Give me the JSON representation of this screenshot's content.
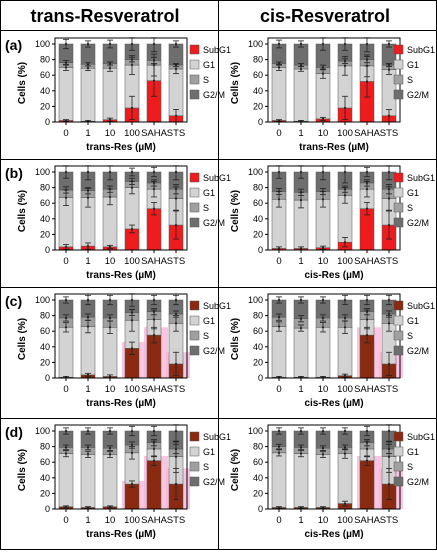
{
  "headers": {
    "left": "trans-Resveratrol",
    "right": "cis-Resveratrol"
  },
  "rows": [
    {
      "label": "(a)",
      "xlabel_left": "trans-Res (µM)",
      "xlabel_right": "trans-Res (µM)"
    },
    {
      "label": "(b)",
      "xlabel_left": "trans-Res (µM)",
      "xlabel_right": "cis-Res (µM)"
    },
    {
      "label": "(c)",
      "xlabel_left": "trans-Res (µM)",
      "xlabel_right": "cis-Res (µM)"
    },
    {
      "label": "(d)",
      "xlabel_left": "trans-Res (µM)",
      "xlabel_right": "cis-Res (µM)"
    }
  ],
  "colors": {
    "SubG1": "#ee1c1c",
    "SubG1_dark": "#8a2a10",
    "G1": "#d3d3d3",
    "S": "#a0a0a0",
    "G2M": "#6e6e6e",
    "pink_bg": "#f7b6d8",
    "border": "#000000"
  },
  "chart_data": [
    {
      "panel": "a-trans",
      "type": "bar",
      "stacked": true,
      "categories": [
        "0",
        "1",
        "10",
        "100",
        "SAHA",
        "STS"
      ],
      "ylabel": "Cells (%)",
      "xlabel": "trans-Res (µM)",
      "ylim": [
        0,
        100
      ],
      "yticks": [
        0,
        20,
        40,
        60,
        80,
        100
      ],
      "legend": [
        "SubG1",
        "G1",
        "S",
        "G2/M"
      ],
      "series": [
        {
          "name": "SubG1",
          "values": [
            2,
            1,
            3,
            18,
            53,
            8
          ]
        },
        {
          "name": "G1",
          "values": [
            68,
            68,
            66,
            55,
            20,
            60
          ]
        },
        {
          "name": "S",
          "values": [
            6,
            5,
            6,
            7,
            6,
            5
          ]
        },
        {
          "name": "G2/M",
          "values": [
            24,
            26,
            25,
            20,
            21,
            27
          ]
        }
      ],
      "errors": {
        "SubG1": [
          1,
          1,
          2,
          15,
          20,
          8
        ],
        "G1": [
          4,
          3,
          4,
          12,
          14,
          6
        ],
        "S": [
          3,
          2,
          2,
          3,
          4,
          2
        ],
        "G2/M": [
          6,
          4,
          5,
          8,
          10,
          4
        ]
      }
    },
    {
      "panel": "a-cis",
      "type": "bar",
      "stacked": true,
      "categories": [
        "0",
        "1",
        "10",
        "100",
        "SAHA",
        "STS"
      ],
      "ylabel": "Cells (%)",
      "xlabel": "trans-Res (µM)",
      "ylim": [
        0,
        100
      ],
      "yticks": [
        0,
        20,
        40,
        60,
        80,
        100
      ],
      "legend": [
        "SubG1",
        "G1",
        "S",
        "G2/M"
      ],
      "series": [
        {
          "name": "SubG1",
          "values": [
            2,
            1,
            4,
            18,
            52,
            8
          ]
        },
        {
          "name": "G1",
          "values": [
            68,
            67,
            58,
            54,
            20,
            59
          ]
        },
        {
          "name": "S",
          "values": [
            5,
            5,
            8,
            6,
            8,
            6
          ]
        },
        {
          "name": "G2/M",
          "values": [
            25,
            27,
            30,
            22,
            20,
            27
          ]
        }
      ],
      "errors": {
        "SubG1": [
          1,
          1,
          2,
          15,
          20,
          8
        ],
        "G1": [
          4,
          3,
          6,
          12,
          14,
          6
        ],
        "S": [
          2,
          2,
          3,
          3,
          4,
          2
        ],
        "G2/M": [
          5,
          4,
          8,
          8,
          10,
          4
        ]
      }
    },
    {
      "panel": "b-trans",
      "type": "bar",
      "stacked": true,
      "categories": [
        "0",
        "1",
        "10",
        "100",
        "SAHA",
        "STS"
      ],
      "ylabel": "Cells (%)",
      "xlabel": "trans-Res (µM)",
      "ylim": [
        0,
        100
      ],
      "yticks": [
        0,
        20,
        40,
        60,
        80,
        100
      ],
      "legend": [
        "SubG1",
        "G1",
        "S",
        "G2/M"
      ],
      "series": [
        {
          "name": "SubG1",
          "values": [
            4,
            5,
            4,
            27,
            53,
            32
          ]
        },
        {
          "name": "G1",
          "values": [
            63,
            62,
            64,
            53,
            25,
            34
          ]
        },
        {
          "name": "S",
          "values": [
            10,
            9,
            10,
            8,
            8,
            12
          ]
        },
        {
          "name": "G2/M",
          "values": [
            23,
            24,
            22,
            12,
            14,
            22
          ]
        }
      ],
      "errors": {
        "SubG1": [
          3,
          4,
          2,
          5,
          8,
          18
        ],
        "G1": [
          10,
          12,
          10,
          8,
          10,
          15
        ],
        "S": [
          4,
          4,
          4,
          4,
          4,
          6
        ],
        "G2/M": [
          8,
          10,
          10,
          5,
          6,
          10
        ]
      }
    },
    {
      "panel": "b-cis",
      "type": "bar",
      "stacked": true,
      "categories": [
        "0",
        "1",
        "10",
        "100",
        "SAHA",
        "STS"
      ],
      "ylabel": "Cells (%)",
      "xlabel": "cis-Res (µM)",
      "ylim": [
        0,
        100
      ],
      "yticks": [
        0,
        20,
        40,
        60,
        80,
        100
      ],
      "legend": [
        "SubG1",
        "G1",
        "S",
        "G2/M"
      ],
      "series": [
        {
          "name": "SubG1",
          "values": [
            2,
            2,
            3,
            10,
            53,
            32
          ]
        },
        {
          "name": "G1",
          "values": [
            63,
            62,
            62,
            60,
            25,
            34
          ]
        },
        {
          "name": "S",
          "values": [
            10,
            10,
            10,
            8,
            8,
            12
          ]
        },
        {
          "name": "G2/M",
          "values": [
            25,
            26,
            25,
            22,
            14,
            22
          ]
        }
      ],
      "errors": {
        "SubG1": [
          2,
          2,
          2,
          6,
          8,
          18
        ],
        "G1": [
          10,
          10,
          10,
          10,
          10,
          15
        ],
        "S": [
          4,
          4,
          4,
          4,
          4,
          6
        ],
        "G2/M": [
          8,
          8,
          10,
          14,
          6,
          10
        ]
      }
    },
    {
      "panel": "c-trans",
      "type": "bar",
      "stacked": true,
      "categories": [
        "0",
        "1",
        "10",
        "100",
        "SAHA",
        "STS"
      ],
      "ylabel": "Cells (%)",
      "xlabel": "trans-Res (µM)",
      "ylim": [
        0,
        100
      ],
      "yticks": [
        0,
        20,
        40,
        60,
        80,
        100
      ],
      "legend": [
        "SubG1",
        "G1",
        "S",
        "G2/M"
      ],
      "series": [
        {
          "name": "SubG1",
          "values": [
            1,
            4,
            2,
            38,
            55,
            18
          ]
        },
        {
          "name": "G1",
          "values": [
            64,
            62,
            63,
            36,
            20,
            52
          ]
        },
        {
          "name": "S",
          "values": [
            12,
            12,
            12,
            10,
            10,
            12
          ]
        },
        {
          "name": "G2/M",
          "values": [
            23,
            22,
            23,
            16,
            15,
            18
          ]
        }
      ],
      "errors": {
        "SubG1": [
          1,
          2,
          2,
          8,
          10,
          15
        ],
        "G1": [
          6,
          8,
          8,
          14,
          12,
          10
        ],
        "S": [
          4,
          4,
          4,
          4,
          4,
          4
        ],
        "G2/M": [
          4,
          6,
          6,
          8,
          6,
          6
        ]
      }
    },
    {
      "panel": "c-cis",
      "type": "bar",
      "stacked": true,
      "categories": [
        "0",
        "1",
        "10",
        "100",
        "SAHA",
        "STS"
      ],
      "ylabel": "Cells (%)",
      "xlabel": "cis-Res (µM)",
      "ylim": [
        0,
        100
      ],
      "yticks": [
        0,
        20,
        40,
        60,
        80,
        100
      ],
      "legend": [
        "SubG1",
        "G1",
        "S",
        "G2/M"
      ],
      "series": [
        {
          "name": "SubG1",
          "values": [
            1,
            1,
            1,
            3,
            55,
            18
          ]
        },
        {
          "name": "G1",
          "values": [
            65,
            63,
            64,
            62,
            20,
            52
          ]
        },
        {
          "name": "S",
          "values": [
            12,
            12,
            12,
            12,
            10,
            12
          ]
        },
        {
          "name": "G2/M",
          "values": [
            22,
            24,
            23,
            23,
            15,
            18
          ]
        }
      ],
      "errors": {
        "SubG1": [
          1,
          1,
          1,
          2,
          10,
          15
        ],
        "G1": [
          6,
          4,
          6,
          8,
          12,
          10
        ],
        "S": [
          4,
          4,
          4,
          4,
          4,
          4
        ],
        "G2/M": [
          4,
          4,
          4,
          6,
          6,
          6
        ]
      }
    },
    {
      "panel": "d-trans",
      "type": "bar",
      "stacked": true,
      "categories": [
        "0",
        "1",
        "10",
        "100",
        "SAHA",
        "STS"
      ],
      "ylabel": "Cells (%)",
      "xlabel": "trans-Res (µM)",
      "ylim": [
        0,
        100
      ],
      "yticks": [
        0,
        20,
        40,
        60,
        80,
        100
      ],
      "legend": [
        "SubG1",
        "G1",
        "S",
        "G2/M"
      ],
      "series": [
        {
          "name": "SubG1",
          "values": [
            3,
            2,
            3,
            32,
            62,
            32
          ]
        },
        {
          "name": "G1",
          "values": [
            68,
            68,
            67,
            40,
            15,
            35
          ]
        },
        {
          "name": "S",
          "values": [
            8,
            9,
            8,
            10,
            8,
            10
          ]
        },
        {
          "name": "G2/M",
          "values": [
            21,
            21,
            22,
            18,
            15,
            23
          ]
        }
      ],
      "errors": {
        "SubG1": [
          1,
          1,
          1,
          4,
          6,
          20
        ],
        "G1": [
          4,
          4,
          4,
          8,
          10,
          20
        ],
        "S": [
          3,
          3,
          3,
          4,
          4,
          6
        ],
        "G2/M": [
          4,
          4,
          4,
          6,
          6,
          14
        ]
      }
    },
    {
      "panel": "d-cis",
      "type": "bar",
      "stacked": true,
      "categories": [
        "0",
        "1",
        "10",
        "100",
        "SAHA",
        "STS"
      ],
      "ylabel": "Cells (%)",
      "xlabel": "cis-Res (µM)",
      "ylim": [
        0,
        100
      ],
      "yticks": [
        0,
        20,
        40,
        60,
        80,
        100
      ],
      "legend": [
        "SubG1",
        "G1",
        "S",
        "G2/M"
      ],
      "series": [
        {
          "name": "SubG1",
          "values": [
            2,
            2,
            2,
            7,
            62,
            32
          ]
        },
        {
          "name": "G1",
          "values": [
            70,
            69,
            68,
            64,
            15,
            35
          ]
        },
        {
          "name": "S",
          "values": [
            8,
            8,
            8,
            8,
            8,
            10
          ]
        },
        {
          "name": "G2/M",
          "values": [
            20,
            21,
            22,
            21,
            15,
            23
          ]
        }
      ],
      "errors": {
        "SubG1": [
          1,
          1,
          1,
          3,
          6,
          20
        ],
        "G1": [
          4,
          4,
          4,
          6,
          10,
          20
        ],
        "S": [
          3,
          3,
          3,
          3,
          4,
          6
        ],
        "G2/M": [
          4,
          4,
          4,
          4,
          6,
          14
        ]
      }
    }
  ]
}
